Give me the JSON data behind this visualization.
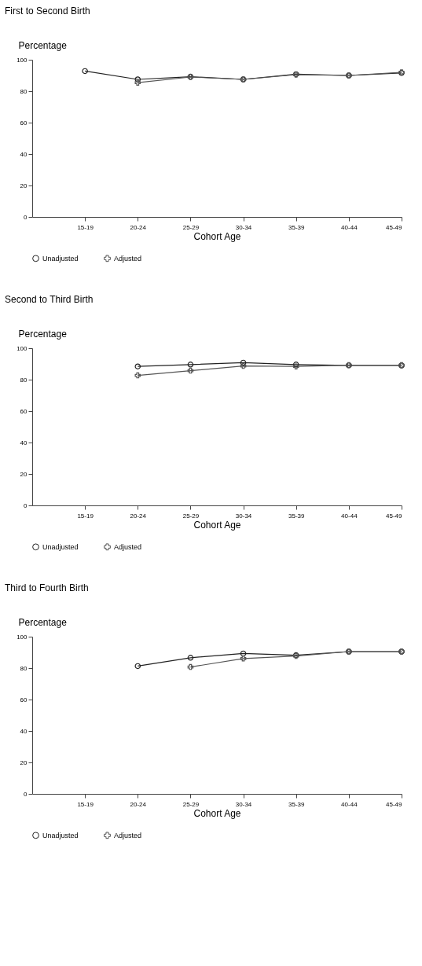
{
  "chart_data": [
    {
      "type": "line",
      "title": "First to Second Birth",
      "ylabel": "Percentage",
      "xlabel": "Cohort Age",
      "categories": [
        "15-19",
        "20-24",
        "25-29",
        "30-34",
        "35-39",
        "40-44",
        "45-49"
      ],
      "ylim": [
        0,
        100
      ],
      "yticks": [
        0,
        20,
        40,
        60,
        80,
        100
      ],
      "grid": false,
      "legend": "bottom",
      "series": [
        {
          "name": "Unadjusted",
          "color": "#222222",
          "marker": "circle",
          "values": [
            92.8,
            87.5,
            89.2,
            87.5,
            90.8,
            90.0,
            91.6
          ]
        },
        {
          "name": "Adjusted",
          "color": "#555555",
          "marker": "cross",
          "values": [
            null,
            85.4,
            89.0,
            87.5,
            90.5,
            90.0,
            92.0
          ]
        }
      ]
    },
    {
      "type": "line",
      "title": "Second to Third Birth",
      "ylabel": "Percentage",
      "xlabel": "Cohort Age",
      "categories": [
        "15-19",
        "20-24",
        "25-29",
        "30-34",
        "35-39",
        "40-44",
        "45-49"
      ],
      "ylim": [
        0,
        100
      ],
      "yticks": [
        0,
        20,
        40,
        60,
        80,
        100
      ],
      "grid": false,
      "legend": "bottom",
      "series": [
        {
          "name": "Unadjusted",
          "color": "#222222",
          "marker": "circle",
          "values": [
            null,
            88.4,
            89.6,
            90.8,
            89.6,
            89.1,
            89.0
          ]
        },
        {
          "name": "Adjusted",
          "color": "#555555",
          "marker": "cross",
          "values": [
            null,
            82.7,
            85.7,
            88.7,
            88.4,
            89.2,
            89.2
          ]
        }
      ]
    },
    {
      "type": "line",
      "title": "Third to Fourth Birth",
      "ylabel": "Percentage",
      "xlabel": "Cohort Age",
      "categories": [
        "15-19",
        "20-24",
        "25-29",
        "30-34",
        "35-39",
        "40-44",
        "45-49"
      ],
      "ylim": [
        0,
        100
      ],
      "yticks": [
        0,
        20,
        40,
        60,
        80,
        100
      ],
      "grid": false,
      "legend": "bottom",
      "series": [
        {
          "name": "Unadjusted",
          "color": "#222222",
          "marker": "circle",
          "values": [
            null,
            81.3,
            86.6,
            89.3,
            88.2,
            90.5,
            90.5
          ]
        },
        {
          "name": "Adjusted",
          "color": "#555555",
          "marker": "cross",
          "values": [
            null,
            null,
            80.7,
            86.1,
            87.7,
            90.5,
            90.5
          ]
        }
      ]
    }
  ]
}
